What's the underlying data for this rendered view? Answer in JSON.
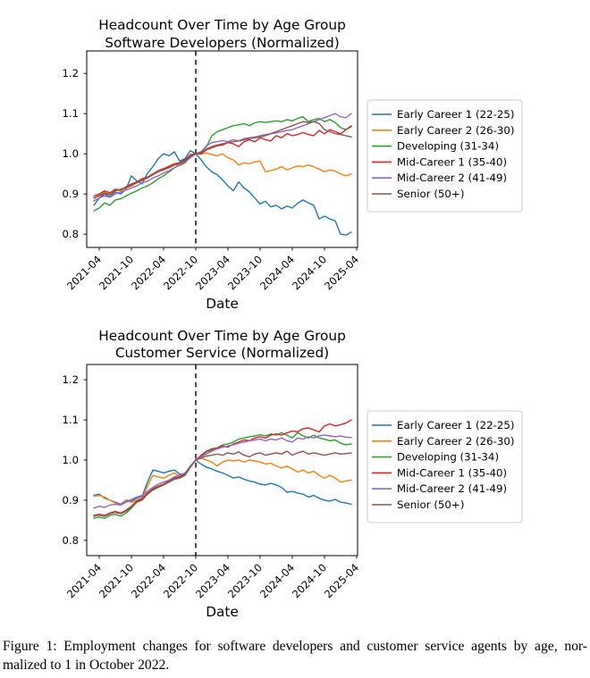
{
  "caption": {
    "line1": "Figure 1: Employment changes for software developers and customer service agents by age, nor-",
    "line2": "malized to 1 in October 2022."
  },
  "chart_data": [
    {
      "type": "line",
      "title_line1": "Headcount Over Time by Age Group",
      "title_line2": "Software Developers (Normalized)",
      "xlabel": "Date",
      "ylabel": "",
      "x_start": "2021-03",
      "x_end": "2025-03",
      "x_step": "1 month",
      "n_points": 49,
      "xtick_indices": [
        1,
        7,
        13,
        19,
        25,
        31,
        37,
        43,
        49
      ],
      "xtick_labels": [
        "2021-04",
        "2021-10",
        "2022-04",
        "2022-10",
        "2023-04",
        "2023-10",
        "2024-04",
        "2024-10",
        "2025-04"
      ],
      "ytick_values": [
        0.8,
        0.9,
        1.0,
        1.1,
        1.2
      ],
      "ytick_labels": [
        "0.8",
        "0.9",
        "1.0",
        "1.1",
        "1.2"
      ],
      "ylim": [
        0.767,
        1.256
      ],
      "grid": false,
      "legend_position": "right",
      "vline": {
        "x_index": 19,
        "at": "2022-10",
        "style": "dashed",
        "color": "#000000"
      },
      "series": [
        {
          "name": "Early Career 1 (22-25)",
          "color": "#1f77b4",
          "values": [
            0.872,
            0.89,
            0.9,
            0.893,
            0.905,
            0.9,
            0.912,
            0.945,
            0.932,
            0.925,
            0.952,
            0.968,
            0.988,
            1.0,
            0.995,
            1.005,
            0.982,
            0.988,
            1.008,
            1.0,
            0.985,
            0.967,
            0.955,
            0.948,
            0.935,
            0.92,
            0.908,
            0.93,
            0.915,
            0.905,
            0.89,
            0.875,
            0.882,
            0.868,
            0.872,
            0.863,
            0.87,
            0.865,
            0.877,
            0.885,
            0.878,
            0.872,
            0.838,
            0.845,
            0.838,
            0.833,
            0.8,
            0.798,
            0.805
          ]
        },
        {
          "name": "Early Career 2 (26-30)",
          "color": "#ff7f0e",
          "values": [
            0.89,
            0.898,
            0.905,
            0.9,
            0.91,
            0.908,
            0.915,
            0.92,
            0.928,
            0.935,
            0.94,
            0.95,
            0.955,
            0.962,
            0.97,
            0.975,
            0.97,
            0.978,
            0.995,
            1.0,
            1.0,
            1.002,
            0.998,
            0.995,
            1.0,
            0.99,
            0.985,
            0.972,
            0.978,
            0.975,
            0.98,
            0.982,
            0.955,
            0.958,
            0.962,
            0.968,
            0.96,
            0.965,
            0.97,
            0.968,
            0.972,
            0.968,
            0.962,
            0.955,
            0.96,
            0.957,
            0.95,
            0.945,
            0.95
          ]
        },
        {
          "name": "Developing (31-34)",
          "color": "#2ca02c",
          "values": [
            0.858,
            0.865,
            0.878,
            0.872,
            0.885,
            0.888,
            0.895,
            0.902,
            0.908,
            0.915,
            0.92,
            0.928,
            0.938,
            0.945,
            0.955,
            0.965,
            0.972,
            0.978,
            0.992,
            1.0,
            1.005,
            1.018,
            1.045,
            1.055,
            1.06,
            1.065,
            1.07,
            1.072,
            1.075,
            1.07,
            1.077,
            1.08,
            1.078,
            1.08,
            1.082,
            1.08,
            1.085,
            1.082,
            1.088,
            1.092,
            1.08,
            1.085,
            1.088,
            1.08,
            1.085,
            1.078,
            1.065,
            1.06,
            1.07
          ]
        },
        {
          "name": "Mid-Career 1 (35-40)",
          "color": "#d62728",
          "values": [
            0.895,
            0.9,
            0.908,
            0.903,
            0.912,
            0.91,
            0.918,
            0.925,
            0.93,
            0.938,
            0.942,
            0.95,
            0.958,
            0.963,
            0.968,
            0.975,
            0.978,
            0.985,
            0.998,
            1.0,
            1.0,
            1.01,
            1.015,
            1.02,
            1.022,
            1.028,
            1.025,
            1.018,
            1.03,
            1.035,
            1.03,
            1.04,
            1.035,
            1.032,
            1.045,
            1.04,
            1.05,
            1.045,
            1.048,
            1.053,
            1.048,
            1.045,
            1.058,
            1.05,
            1.06,
            1.055,
            1.05,
            1.06,
            1.068
          ]
        },
        {
          "name": "Mid-Career 2 (41-49)",
          "color": "#9467bd",
          "values": [
            0.883,
            0.89,
            0.895,
            0.892,
            0.9,
            0.905,
            0.91,
            0.915,
            0.92,
            0.928,
            0.932,
            0.94,
            0.945,
            0.952,
            0.958,
            0.965,
            0.972,
            0.98,
            0.99,
            1.0,
            1.005,
            1.02,
            1.028,
            1.03,
            1.033,
            1.03,
            1.035,
            1.032,
            1.038,
            1.04,
            1.042,
            1.045,
            1.048,
            1.05,
            1.052,
            1.055,
            1.058,
            1.06,
            1.065,
            1.07,
            1.075,
            1.08,
            1.085,
            1.09,
            1.095,
            1.1,
            1.092,
            1.09,
            1.1
          ]
        },
        {
          "name": "Senior (50+)",
          "color": "#8c564b",
          "values": [
            0.89,
            0.895,
            0.902,
            0.898,
            0.908,
            0.912,
            0.916,
            0.922,
            0.928,
            0.934,
            0.94,
            0.948,
            0.955,
            0.96,
            0.965,
            0.972,
            0.976,
            0.982,
            0.995,
            1.0,
            1.003,
            1.012,
            1.018,
            1.022,
            1.025,
            1.028,
            1.03,
            1.032,
            1.035,
            1.038,
            1.04,
            1.042,
            1.045,
            1.05,
            1.055,
            1.06,
            1.065,
            1.07,
            1.075,
            1.08,
            1.078,
            1.08,
            1.075,
            1.06,
            1.055,
            1.05,
            1.048,
            1.045,
            1.042
          ]
        }
      ]
    },
    {
      "type": "line",
      "title_line1": "Headcount Over Time by Age Group",
      "title_line2": "Customer Service (Normalized)",
      "xlabel": "Date",
      "ylabel": "",
      "x_start": "2021-03",
      "x_end": "2025-03",
      "x_step": "1 month",
      "n_points": 49,
      "xtick_indices": [
        1,
        7,
        13,
        19,
        25,
        31,
        37,
        43,
        49
      ],
      "xtick_labels": [
        "2021-04",
        "2021-10",
        "2022-04",
        "2022-10",
        "2023-04",
        "2023-10",
        "2024-04",
        "2024-10",
        "2025-04"
      ],
      "ytick_values": [
        0.8,
        0.9,
        1.0,
        1.1,
        1.2
      ],
      "ytick_labels": [
        "0.8",
        "0.9",
        "1.0",
        "1.1",
        "1.2"
      ],
      "ylim": [
        0.762,
        1.238
      ],
      "grid": false,
      "legend_position": "right",
      "vline": {
        "x_index": 19,
        "at": "2022-10",
        "style": "dashed",
        "color": "#000000"
      },
      "series": [
        {
          "name": "Early Career 1 (22-25)",
          "color": "#1f77b4",
          "values": [
            0.912,
            0.915,
            0.905,
            0.9,
            0.895,
            0.89,
            0.9,
            0.898,
            0.905,
            0.91,
            0.945,
            0.975,
            0.972,
            0.968,
            0.972,
            0.975,
            0.965,
            0.963,
            0.985,
            1.0,
            0.99,
            0.982,
            0.978,
            0.972,
            0.968,
            0.962,
            0.955,
            0.958,
            0.952,
            0.948,
            0.945,
            0.94,
            0.938,
            0.942,
            0.938,
            0.932,
            0.92,
            0.922,
            0.918,
            0.915,
            0.908,
            0.912,
            0.905,
            0.9,
            0.898,
            0.902,
            0.895,
            0.893,
            0.89
          ]
        },
        {
          "name": "Early Career 2 (26-30)",
          "color": "#ff7f0e",
          "values": [
            0.91,
            0.912,
            0.908,
            0.9,
            0.893,
            0.888,
            0.898,
            0.895,
            0.9,
            0.905,
            0.935,
            0.962,
            0.958,
            0.955,
            0.962,
            0.968,
            0.96,
            0.965,
            0.985,
            1.0,
            1.005,
            1.0,
            0.995,
            0.985,
            0.995,
            1.0,
            0.998,
            1.0,
            0.995,
            1.0,
            0.998,
            0.995,
            0.99,
            0.992,
            0.985,
            0.98,
            0.985,
            0.978,
            0.97,
            0.975,
            0.968,
            0.972,
            0.962,
            0.955,
            0.962,
            0.955,
            0.945,
            0.948,
            0.95
          ]
        },
        {
          "name": "Developing (31-34)",
          "color": "#2ca02c",
          "values": [
            0.855,
            0.858,
            0.855,
            0.862,
            0.865,
            0.86,
            0.868,
            0.88,
            0.895,
            0.9,
            0.915,
            0.925,
            0.932,
            0.938,
            0.945,
            0.952,
            0.955,
            0.962,
            0.982,
            1.0,
            1.01,
            1.02,
            1.025,
            1.03,
            1.038,
            1.04,
            1.045,
            1.052,
            1.055,
            1.058,
            1.06,
            1.063,
            1.06,
            1.065,
            1.062,
            1.068,
            1.062,
            1.055,
            1.068,
            1.06,
            1.055,
            1.062,
            1.055,
            1.052,
            1.048,
            1.05,
            1.042,
            1.038,
            1.04
          ]
        },
        {
          "name": "Mid-Career 1 (35-40)",
          "color": "#d62728",
          "values": [
            0.862,
            0.865,
            0.862,
            0.868,
            0.872,
            0.868,
            0.875,
            0.885,
            0.898,
            0.905,
            0.918,
            0.928,
            0.935,
            0.94,
            0.948,
            0.955,
            0.958,
            0.965,
            0.985,
            1.0,
            1.012,
            1.022,
            1.028,
            1.03,
            1.035,
            1.032,
            1.04,
            1.045,
            1.05,
            1.048,
            1.055,
            1.058,
            1.055,
            1.062,
            1.065,
            1.062,
            1.068,
            1.072,
            1.07,
            1.078,
            1.08,
            1.075,
            1.07,
            1.085,
            1.09,
            1.085,
            1.088,
            1.092,
            1.1
          ]
        },
        {
          "name": "Mid-Career 2 (41-49)",
          "color": "#9467bd",
          "values": [
            0.88,
            0.885,
            0.882,
            0.888,
            0.89,
            0.888,
            0.895,
            0.902,
            0.908,
            0.912,
            0.922,
            0.932,
            0.94,
            0.945,
            0.95,
            0.958,
            0.962,
            0.968,
            0.985,
            1.0,
            1.008,
            1.015,
            1.022,
            1.028,
            1.032,
            1.035,
            1.038,
            1.042,
            1.045,
            1.048,
            1.05,
            1.052,
            1.048,
            1.052,
            1.05,
            1.055,
            1.048,
            1.045,
            1.055,
            1.052,
            1.058,
            1.055,
            1.06,
            1.062,
            1.06,
            1.058,
            1.06,
            1.057,
            1.056
          ]
        },
        {
          "name": "Senior (50+)",
          "color": "#8c564b",
          "values": [
            0.86,
            0.863,
            0.86,
            0.866,
            0.87,
            0.866,
            0.873,
            0.883,
            0.895,
            0.902,
            0.915,
            0.926,
            0.933,
            0.938,
            0.946,
            0.953,
            0.956,
            0.963,
            0.983,
            1.0,
            1.005,
            1.01,
            1.012,
            1.015,
            1.012,
            1.018,
            1.015,
            1.02,
            1.012,
            1.008,
            1.015,
            1.018,
            1.012,
            1.015,
            1.018,
            1.015,
            1.022,
            1.012,
            1.018,
            1.022,
            1.015,
            1.018,
            1.015,
            1.012,
            1.015,
            1.018,
            1.015,
            1.016,
            1.018
          ]
        }
      ]
    }
  ]
}
